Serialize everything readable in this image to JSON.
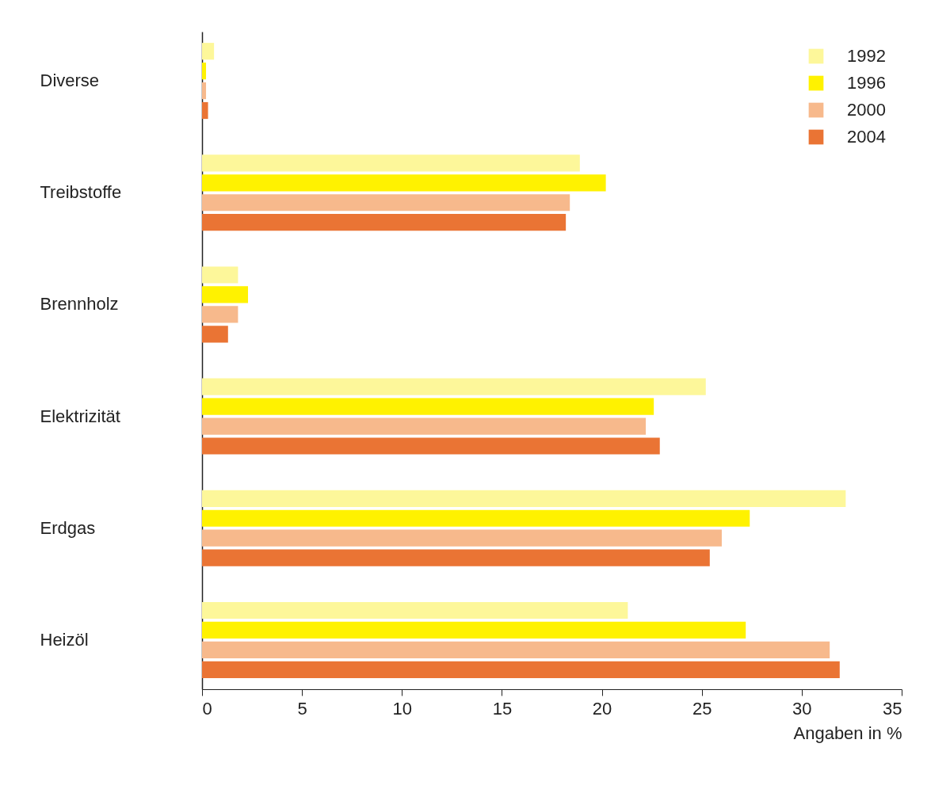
{
  "chart_data": {
    "type": "bar",
    "orientation": "horizontal",
    "xlabel": "Angaben in %",
    "categories": [
      "Diverse",
      "Treibstoffe",
      "Brennholz",
      "Elektrizität",
      "Erdgas",
      "Heizöl"
    ],
    "series": [
      {
        "name": "1992",
        "color": "#fdf79a",
        "values": [
          0.6,
          18.9,
          1.8,
          25.2,
          32.2,
          21.3
        ]
      },
      {
        "name": "1996",
        "color": "#fff200",
        "values": [
          0.2,
          20.2,
          2.3,
          22.6,
          27.4,
          27.2
        ]
      },
      {
        "name": "2000",
        "color": "#f7b98c",
        "values": [
          0.2,
          18.4,
          1.8,
          22.2,
          26.0,
          31.4
        ]
      },
      {
        "name": "2004",
        "color": "#ea7434",
        "values": [
          0.3,
          18.2,
          1.3,
          22.9,
          25.4,
          31.9
        ]
      }
    ],
    "xlim": [
      0,
      35
    ],
    "xticks": [
      0,
      5,
      10,
      15,
      20,
      25,
      30,
      35
    ],
    "grid": false,
    "legend": "top right"
  }
}
